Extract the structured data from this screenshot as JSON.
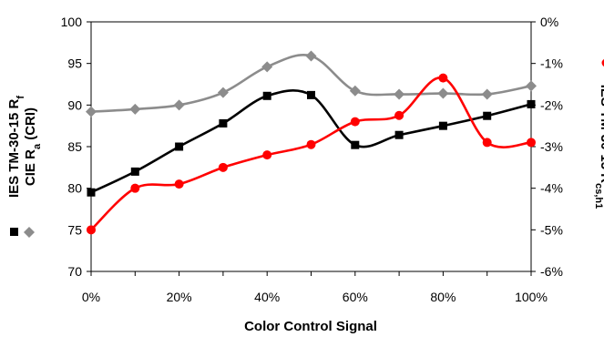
{
  "chart_data": {
    "type": "line",
    "xlabel": "Color Control Signal",
    "x": [
      0,
      10,
      20,
      30,
      40,
      50,
      60,
      70,
      80,
      90,
      100
    ],
    "xticks": [
      "0%",
      "20%",
      "40%",
      "60%",
      "80%",
      "100%"
    ],
    "xlim": [
      0,
      100
    ],
    "ylim_left": [
      70,
      100
    ],
    "yticks_left": [
      "70",
      "75",
      "80",
      "85",
      "90",
      "95",
      "100"
    ],
    "ylim_right": [
      -6,
      0
    ],
    "yticks_right": [
      "-6%",
      "-5%",
      "-4%",
      "-3%",
      "-2%",
      "-1%",
      "0%"
    ],
    "ylabel_left_line1": "IES TM-30-15 R",
    "ylabel_left_line1_sub": "f",
    "ylabel_left_line2": "CIE R",
    "ylabel_left_line2_sub": "a",
    "ylabel_left_line2_suffix": " (CRI)",
    "ylabel_right": "IES TM-30-15 R",
    "ylabel_right_sub": "cs,h1",
    "grid": false,
    "series": [
      {
        "name": "IES TM-30-15 Rf",
        "axis": "left",
        "color": "#000000",
        "marker": "square",
        "values": [
          79.5,
          82.0,
          85.0,
          87.8,
          91.1,
          91.2,
          85.2,
          86.4,
          87.5,
          88.7,
          90.1
        ]
      },
      {
        "name": "CIE Ra (CRI)",
        "axis": "left",
        "color": "#8c8c8c",
        "marker": "diamond",
        "values": [
          89.2,
          89.5,
          90.0,
          91.5,
          94.6,
          95.9,
          91.7,
          91.3,
          91.4,
          91.3,
          92.3
        ]
      },
      {
        "name": "IES TM-30-15 Rcs,h1",
        "axis": "right",
        "color": "#ff0000",
        "marker": "circle",
        "values": [
          -5.0,
          -4.0,
          -3.9,
          -3.5,
          -3.2,
          -2.95,
          -2.4,
          -2.25,
          -1.35,
          -2.9,
          -2.9
        ]
      }
    ]
  }
}
